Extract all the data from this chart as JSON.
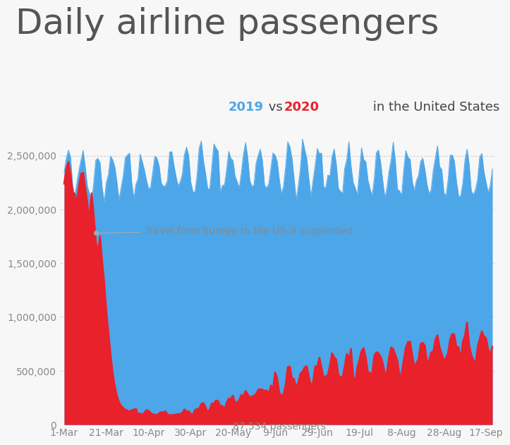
{
  "title": "Daily airline passengers",
  "color_2019": "#4da6e8",
  "color_2020": "#e8212b",
  "annotation_europe": "Travel from Europe to the US is suspended",
  "annotation_min": "87,534 passengers",
  "bg_color": "#f7f7f7",
  "ylim": [
    0,
    2900000
  ],
  "yticks": [
    0,
    500000,
    1000000,
    1500000,
    2000000,
    2500000
  ],
  "ytick_labels": [
    "0",
    "500,000",
    "1,000,000",
    "1,500,000",
    "2,000,000",
    "2,500,000"
  ],
  "xtick_labels": [
    "1-Mar",
    "21-Mar",
    "10-Apr",
    "30-Apr",
    "20-May",
    "9-Jun",
    "29-Jun",
    "19-Jul",
    "8-Aug",
    "28-Aug",
    "17-Sep"
  ],
  "xtick_pos": [
    0,
    20,
    40,
    60,
    80,
    100,
    120,
    140,
    160,
    180,
    200
  ],
  "n_days": 204,
  "title_fontsize": 36,
  "subtitle_fontsize": 13,
  "tick_fontsize": 10,
  "annotation_fontsize": 10,
  "title_color": "#555555",
  "tick_color": "#888888",
  "annotation_color": "#888888",
  "grid_color": "#cccccc",
  "subtitle_normal_color": "#444444",
  "subtitle_2019_color": "#4da6e8",
  "subtitle_2020_color": "#e8212b"
}
